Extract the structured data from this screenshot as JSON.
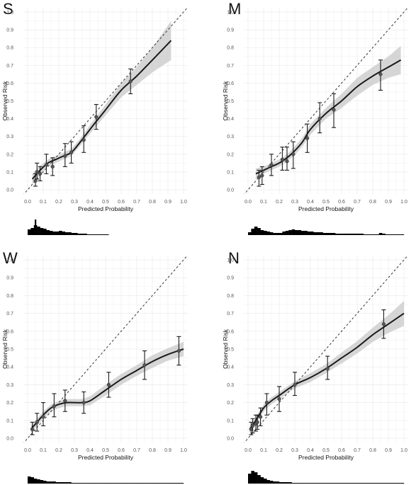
{
  "chart_data": [
    {
      "type": "scatter",
      "panel_label": "S",
      "xlabel": "Predicted Probability",
      "ylabel": "Observed Risk",
      "xlim": [
        0,
        1
      ],
      "ylim": [
        0,
        1
      ],
      "x_ticks": [
        "0.0",
        "0.1",
        "0.2",
        "0.3",
        "0.4",
        "0.5",
        "0.6",
        "0.7",
        "0.8",
        "0.9",
        "1.0"
      ],
      "y_ticks": [
        "0.0",
        "0.1",
        "0.2",
        "0.3",
        "0.4",
        "0.5",
        "0.6",
        "0.7",
        "0.8",
        "0.9",
        "1.0"
      ],
      "grid": true,
      "reference_line": "diagonal",
      "points": [
        {
          "x": 0.05,
          "y": 0.05,
          "lo": 0.02,
          "hi": 0.09
        },
        {
          "x": 0.06,
          "y": 0.1,
          "lo": 0.06,
          "hi": 0.15
        },
        {
          "x": 0.08,
          "y": 0.09,
          "lo": 0.05,
          "hi": 0.13
        },
        {
          "x": 0.12,
          "y": 0.14,
          "lo": 0.09,
          "hi": 0.2
        },
        {
          "x": 0.16,
          "y": 0.13,
          "lo": 0.08,
          "hi": 0.18
        },
        {
          "x": 0.24,
          "y": 0.19,
          "lo": 0.13,
          "hi": 0.26
        },
        {
          "x": 0.28,
          "y": 0.21,
          "lo": 0.15,
          "hi": 0.27
        },
        {
          "x": 0.36,
          "y": 0.28,
          "lo": 0.21,
          "hi": 0.36
        },
        {
          "x": 0.44,
          "y": 0.41,
          "lo": 0.34,
          "hi": 0.48
        },
        {
          "x": 0.66,
          "y": 0.61,
          "lo": 0.54,
          "hi": 0.68
        }
      ],
      "curve": [
        [
          0.03,
          0.06
        ],
        [
          0.08,
          0.11
        ],
        [
          0.13,
          0.15
        ],
        [
          0.18,
          0.17
        ],
        [
          0.23,
          0.19
        ],
        [
          0.28,
          0.21
        ],
        [
          0.33,
          0.26
        ],
        [
          0.4,
          0.34
        ],
        [
          0.5,
          0.45
        ],
        [
          0.6,
          0.56
        ],
        [
          0.7,
          0.64
        ],
        [
          0.8,
          0.73
        ],
        [
          0.92,
          0.84
        ]
      ],
      "band_halfwidth": [
        0.03,
        0.025,
        0.02,
        0.02,
        0.02,
        0.02,
        0.02,
        0.025,
        0.03,
        0.04,
        0.05,
        0.07,
        0.11
      ],
      "histogram": [
        8,
        10,
        14,
        12,
        10,
        9,
        7,
        6,
        5,
        5,
        6,
        5,
        4,
        4,
        3,
        3,
        2,
        2,
        2,
        1,
        1,
        1,
        1,
        1,
        1,
        1,
        0,
        0,
        0,
        0,
        0,
        0,
        0,
        0,
        0,
        0,
        0,
        0,
        0,
        0,
        0,
        0,
        0,
        0,
        0,
        0,
        0,
        0,
        0,
        0
      ],
      "histogram_spike": {
        "x": 0.05,
        "height": 22
      }
    },
    {
      "type": "scatter",
      "panel_label": "M",
      "xlabel": "Predicted Probability",
      "ylabel": "Observed Risk",
      "xlim": [
        0,
        1
      ],
      "ylim": [
        0,
        1
      ],
      "x_ticks": [
        "0.0",
        "0.1",
        "0.2",
        "0.3",
        "0.4",
        "0.5",
        "0.6",
        "0.7",
        "0.8",
        "0.9",
        "1.0"
      ],
      "y_ticks": [
        "0.0",
        "0.1",
        "0.2",
        "0.3",
        "0.4",
        "0.5",
        "0.6",
        "0.7",
        "0.8",
        "0.9",
        "1.0"
      ],
      "grid": true,
      "reference_line": "diagonal",
      "points": [
        {
          "x": 0.07,
          "y": 0.07,
          "lo": 0.02,
          "hi": 0.11
        },
        {
          "x": 0.09,
          "y": 0.08,
          "lo": 0.03,
          "hi": 0.13
        },
        {
          "x": 0.15,
          "y": 0.14,
          "lo": 0.08,
          "hi": 0.2
        },
        {
          "x": 0.22,
          "y": 0.17,
          "lo": 0.11,
          "hi": 0.24
        },
        {
          "x": 0.25,
          "y": 0.16,
          "lo": 0.11,
          "hi": 0.24
        },
        {
          "x": 0.29,
          "y": 0.2,
          "lo": 0.12,
          "hi": 0.27
        },
        {
          "x": 0.38,
          "y": 0.29,
          "lo": 0.21,
          "hi": 0.37
        },
        {
          "x": 0.46,
          "y": 0.4,
          "lo": 0.32,
          "hi": 0.49
        },
        {
          "x": 0.55,
          "y": 0.45,
          "lo": 0.35,
          "hi": 0.54
        },
        {
          "x": 0.85,
          "y": 0.65,
          "lo": 0.56,
          "hi": 0.73
        }
      ],
      "curve": [
        [
          0.05,
          0.09
        ],
        [
          0.1,
          0.11
        ],
        [
          0.15,
          0.13
        ],
        [
          0.2,
          0.15
        ],
        [
          0.25,
          0.18
        ],
        [
          0.3,
          0.22
        ],
        [
          0.35,
          0.27
        ],
        [
          0.4,
          0.34
        ],
        [
          0.5,
          0.43
        ],
        [
          0.6,
          0.5
        ],
        [
          0.7,
          0.58
        ],
        [
          0.8,
          0.64
        ],
        [
          0.9,
          0.69
        ],
        [
          0.98,
          0.73
        ]
      ],
      "band_halfwidth": [
        0.03,
        0.02,
        0.02,
        0.02,
        0.02,
        0.025,
        0.025,
        0.03,
        0.03,
        0.04,
        0.05,
        0.05,
        0.06,
        0.08
      ],
      "histogram": [
        4,
        9,
        12,
        10,
        7,
        6,
        5,
        4,
        3,
        3,
        3,
        5,
        6,
        7,
        8,
        7,
        7,
        6,
        6,
        5,
        5,
        4,
        4,
        4,
        3,
        3,
        3,
        3,
        2,
        2,
        2,
        2,
        2,
        2,
        2,
        2,
        2,
        1,
        1,
        1,
        1,
        1,
        3,
        2,
        1,
        1,
        1,
        1,
        1,
        1
      ],
      "histogram_spike": null
    },
    {
      "type": "scatter",
      "panel_label": "W",
      "xlabel": "Predicted Probability",
      "ylabel": "Observed Risk",
      "xlim": [
        0,
        1
      ],
      "ylim": [
        0,
        1
      ],
      "x_ticks": [
        "0.0",
        "0.1",
        "0.2",
        "0.3",
        "0.4",
        "0.5",
        "0.6",
        "0.7",
        "0.8",
        "0.9",
        "1.0"
      ],
      "y_ticks": [
        "0.0",
        "0.1",
        "0.2",
        "0.3",
        "0.4",
        "0.5",
        "0.6",
        "0.7",
        "0.8",
        "0.9",
        "1.0"
      ],
      "grid": true,
      "reference_line": "diagonal",
      "points": [
        {
          "x": 0.03,
          "y": 0.05,
          "lo": 0.02,
          "hi": 0.09
        },
        {
          "x": 0.06,
          "y": 0.09,
          "lo": 0.04,
          "hi": 0.14
        },
        {
          "x": 0.1,
          "y": 0.12,
          "lo": 0.07,
          "hi": 0.2
        },
        {
          "x": 0.17,
          "y": 0.18,
          "lo": 0.12,
          "hi": 0.25
        },
        {
          "x": 0.24,
          "y": 0.21,
          "lo": 0.15,
          "hi": 0.27
        },
        {
          "x": 0.36,
          "y": 0.2,
          "lo": 0.14,
          "hi": 0.26
        },
        {
          "x": 0.52,
          "y": 0.3,
          "lo": 0.23,
          "hi": 0.37
        },
        {
          "x": 0.75,
          "y": 0.41,
          "lo": 0.33,
          "hi": 0.49
        },
        {
          "x": 0.97,
          "y": 0.49,
          "lo": 0.41,
          "hi": 0.57
        }
      ],
      "curve": [
        [
          0.02,
          0.05
        ],
        [
          0.06,
          0.09
        ],
        [
          0.1,
          0.13
        ],
        [
          0.15,
          0.17
        ],
        [
          0.2,
          0.19
        ],
        [
          0.25,
          0.2
        ],
        [
          0.3,
          0.2
        ],
        [
          0.35,
          0.2
        ],
        [
          0.4,
          0.21
        ],
        [
          0.5,
          0.27
        ],
        [
          0.6,
          0.33
        ],
        [
          0.7,
          0.38
        ],
        [
          0.8,
          0.43
        ],
        [
          0.9,
          0.47
        ],
        [
          1.0,
          0.5
        ]
      ],
      "band_halfwidth": [
        0.02,
        0.02,
        0.02,
        0.02,
        0.02,
        0.02,
        0.02,
        0.02,
        0.025,
        0.03,
        0.03,
        0.03,
        0.035,
        0.035,
        0.04
      ],
      "histogram": [
        10,
        9,
        7,
        6,
        5,
        4,
        3,
        3,
        3,
        2,
        2,
        2,
        2,
        2,
        1,
        1,
        1,
        1,
        1,
        1,
        1,
        1,
        1,
        1,
        1,
        1,
        1,
        1,
        1,
        1,
        1,
        1,
        1,
        1,
        1,
        1,
        1,
        1,
        1,
        1,
        1,
        1,
        1,
        1,
        1,
        1,
        1,
        1,
        1,
        1
      ],
      "histogram_spike": null
    },
    {
      "type": "scatter",
      "panel_label": "N",
      "xlabel": "Predicted Probability",
      "ylabel": "Observed Risk",
      "xlim": [
        0,
        1
      ],
      "ylim": [
        0,
        1
      ],
      "x_ticks": [
        "0.0",
        "0.1",
        "0.2",
        "0.3",
        "0.4",
        "0.5",
        "0.6",
        "0.7",
        "0.8",
        "0.9",
        "1.0"
      ],
      "y_ticks": [
        "0.0",
        "0.1",
        "0.2",
        "0.3",
        "0.4",
        "0.5",
        "0.6",
        "0.7",
        "0.8",
        "0.9",
        "1.0"
      ],
      "grid": true,
      "reference_line": "diagonal",
      "points": [
        {
          "x": 0.02,
          "y": 0.05,
          "lo": 0.02,
          "hi": 0.09
        },
        {
          "x": 0.03,
          "y": 0.07,
          "lo": 0.03,
          "hi": 0.11
        },
        {
          "x": 0.05,
          "y": 0.08,
          "lo": 0.04,
          "hi": 0.13
        },
        {
          "x": 0.06,
          "y": 0.09,
          "lo": 0.05,
          "hi": 0.13
        },
        {
          "x": 0.08,
          "y": 0.12,
          "lo": 0.07,
          "hi": 0.17
        },
        {
          "x": 0.12,
          "y": 0.2,
          "lo": 0.13,
          "hi": 0.25
        },
        {
          "x": 0.2,
          "y": 0.22,
          "lo": 0.15,
          "hi": 0.29
        },
        {
          "x": 0.3,
          "y": 0.3,
          "lo": 0.24,
          "hi": 0.37
        },
        {
          "x": 0.51,
          "y": 0.39,
          "lo": 0.33,
          "hi": 0.46
        },
        {
          "x": 0.87,
          "y": 0.64,
          "lo": 0.56,
          "hi": 0.72
        }
      ],
      "curve": [
        [
          0.01,
          0.05
        ],
        [
          0.05,
          0.1
        ],
        [
          0.1,
          0.17
        ],
        [
          0.15,
          0.21
        ],
        [
          0.2,
          0.24
        ],
        [
          0.3,
          0.3
        ],
        [
          0.4,
          0.34
        ],
        [
          0.5,
          0.39
        ],
        [
          0.6,
          0.45
        ],
        [
          0.7,
          0.51
        ],
        [
          0.8,
          0.58
        ],
        [
          0.9,
          0.64
        ],
        [
          1.0,
          0.7
        ]
      ],
      "band_halfwidth": [
        0.02,
        0.02,
        0.02,
        0.02,
        0.02,
        0.02,
        0.025,
        0.025,
        0.03,
        0.035,
        0.04,
        0.05,
        0.07
      ],
      "histogram": [
        14,
        18,
        16,
        12,
        9,
        7,
        5,
        4,
        3,
        3,
        2,
        2,
        2,
        2,
        1,
        1,
        1,
        1,
        1,
        1,
        1,
        1,
        1,
        1,
        1,
        1,
        1,
        1,
        1,
        1,
        1,
        1,
        1,
        1,
        1,
        1,
        1,
        1,
        1,
        1,
        1,
        1,
        1,
        1,
        1,
        1,
        1,
        1,
        1,
        1
      ],
      "histogram_spike": null
    }
  ]
}
